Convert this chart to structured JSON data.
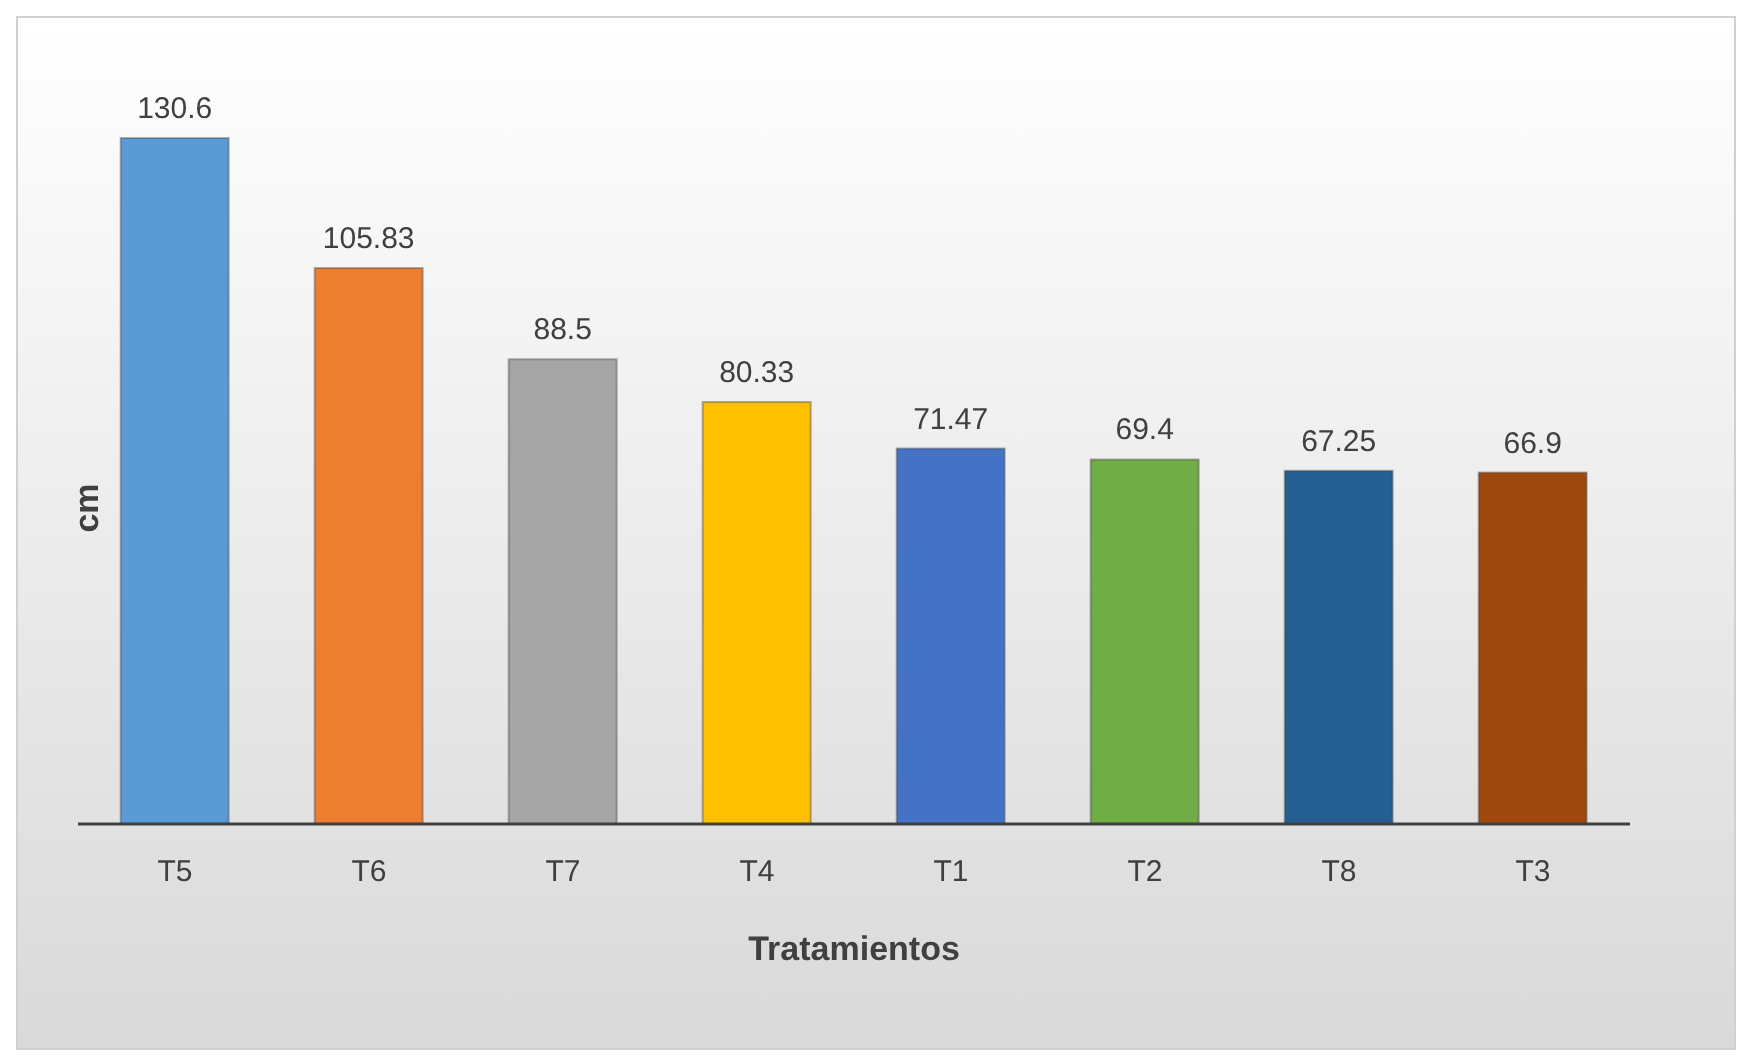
{
  "chart_data": {
    "type": "bar",
    "xlabel": "Tratamientos",
    "ylabel": "cm",
    "categories": [
      "T5",
      "T6",
      "T7",
      "T4",
      "T1",
      "T2",
      "T8",
      "T3"
    ],
    "values": [
      130.6,
      105.83,
      88.5,
      80.33,
      71.47,
      69.4,
      67.25,
      66.9
    ],
    "colors": [
      "#5b9bd5",
      "#ed7d31",
      "#a5a5a5",
      "#ffc000",
      "#4472c4",
      "#70ad47",
      "#255e91",
      "#9e480e"
    ],
    "data_labels": true,
    "grid": false,
    "legend": false
  }
}
